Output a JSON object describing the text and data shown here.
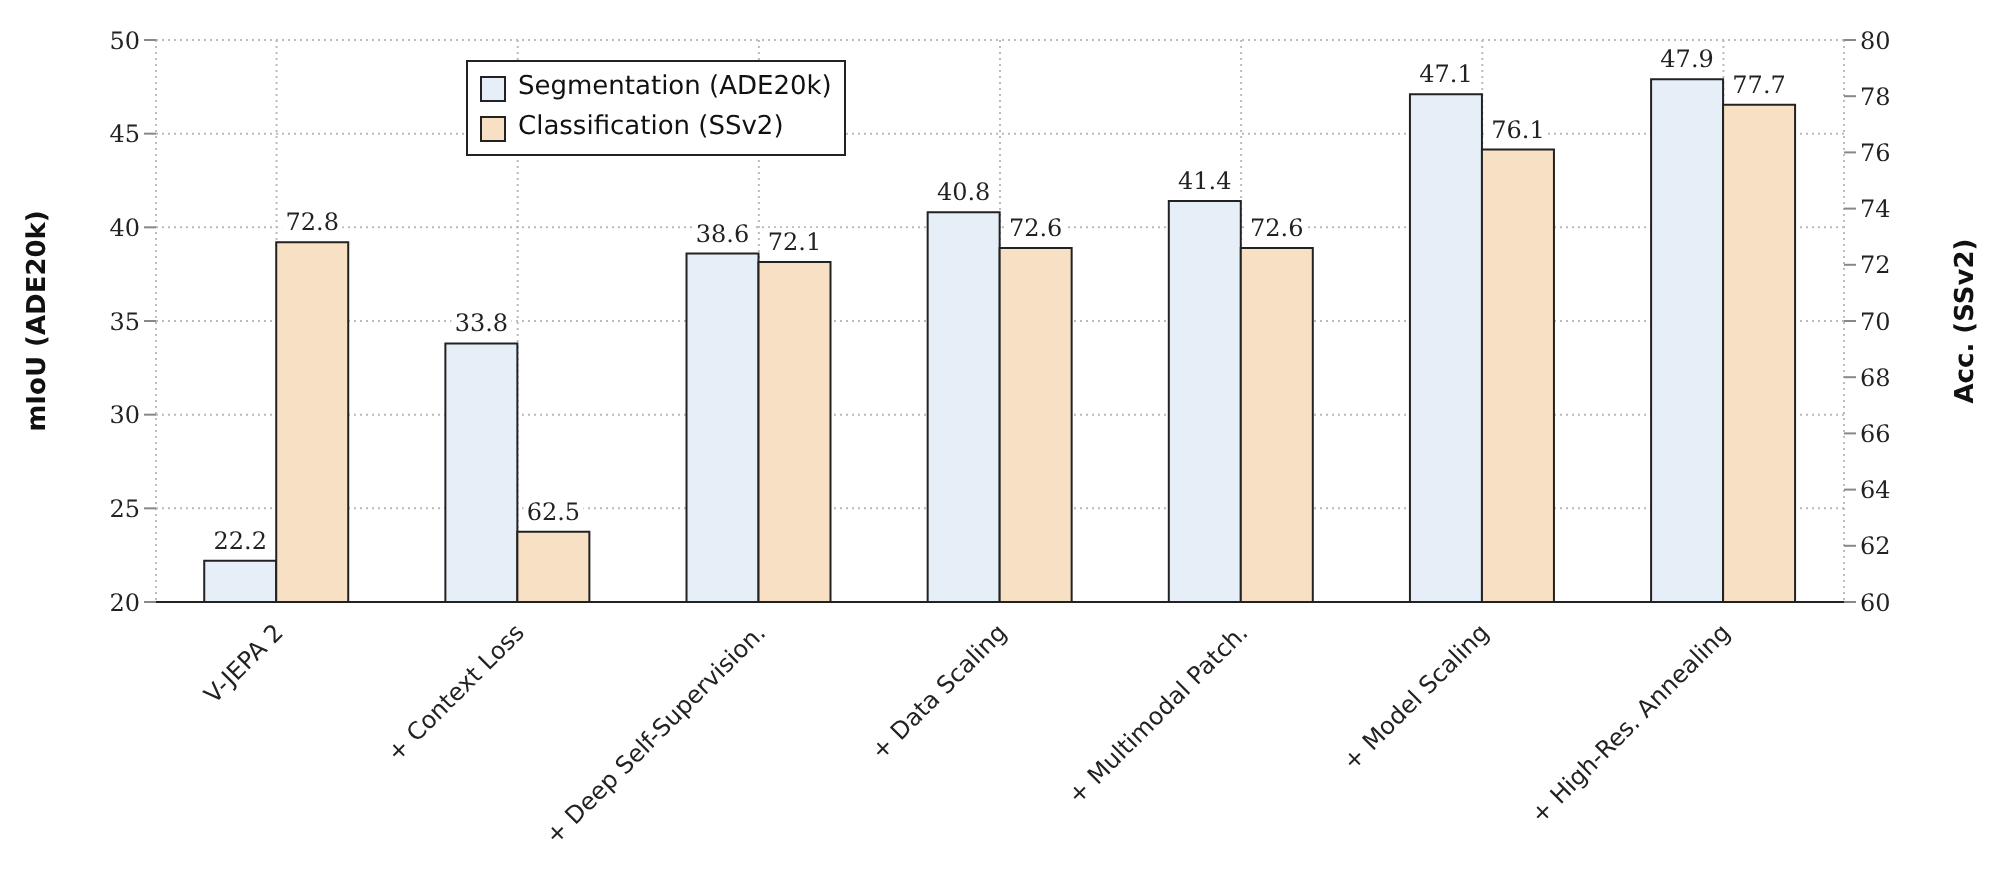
{
  "chart_data": {
    "type": "bar",
    "categories": [
      "V-JEPA 2",
      "+ Context Loss",
      "+ Deep Self-Supervision.",
      "+ Data Scaling",
      "+ Multimodal Patch.",
      "+ Model Scaling",
      "+ High-Res. Annealing"
    ],
    "series": [
      {
        "name": "Segmentation (ADE20k)",
        "color": "#e6eef8",
        "values": [
          22.2,
          33.8,
          38.6,
          40.8,
          41.4,
          47.1,
          47.9
        ]
      },
      {
        "name": "Classification (SSv2)",
        "color": "#f8e0c4",
        "values": [
          72.8,
          62.5,
          72.1,
          72.6,
          72.6,
          76.1,
          77.7
        ],
        "axis": "y2"
      }
    ],
    "ylabel": "mIoU (ADE20k)",
    "y2label": "Acc. (SSv2)",
    "ylim": [
      20,
      50
    ],
    "yticks": [
      20,
      25,
      30,
      35,
      40,
      45,
      50
    ],
    "y2lim": [
      60,
      80
    ],
    "y2ticks": [
      60,
      62,
      64,
      66,
      68,
      70,
      72,
      74,
      76,
      78,
      80
    ],
    "data_labels": true,
    "grid": true,
    "legend": "top left"
  }
}
